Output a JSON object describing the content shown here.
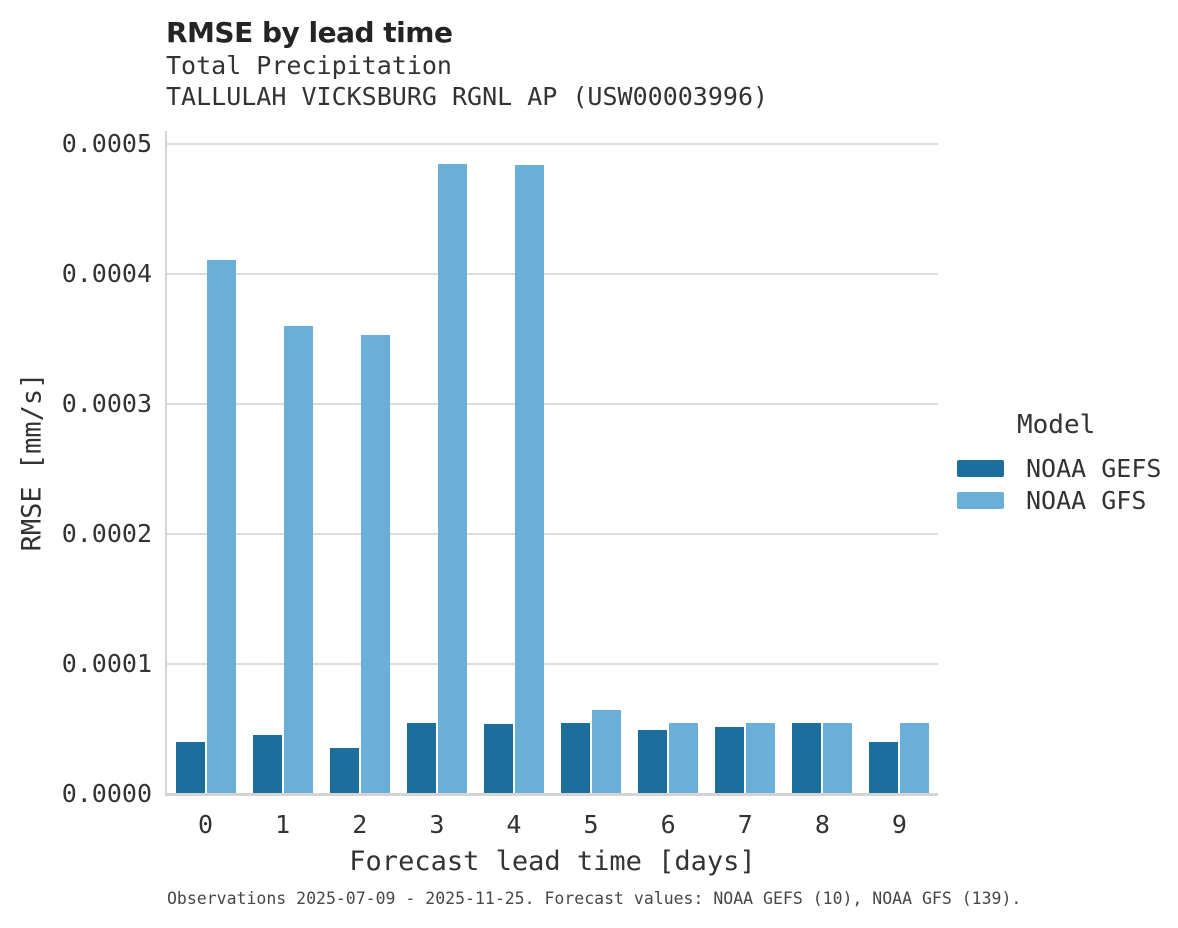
{
  "chart_data": {
    "type": "bar",
    "title": "RMSE by lead time",
    "subtitle_line1": "Total Precipitation",
    "subtitle_line2": "TALLULAH VICKSBURG RGNL AP (USW00003996)",
    "xlabel": "Forecast lead time [days]",
    "ylabel": "RMSE [mm/s]",
    "legend_title": "Model",
    "categories": [
      "0",
      "1",
      "2",
      "3",
      "4",
      "5",
      "6",
      "7",
      "8",
      "9"
    ],
    "series": [
      {
        "name": "NOAA GEFS",
        "color": "#1c6e9d",
        "values": [
          4e-05,
          4.55e-05,
          3.55e-05,
          5.45e-05,
          5.4e-05,
          5.45e-05,
          4.95e-05,
          5.15e-05,
          5.45e-05,
          4e-05
        ]
      },
      {
        "name": "NOAA GFS",
        "color": "#69afd8",
        "values": [
          0.000411,
          0.00036,
          0.000353,
          0.000485,
          0.000484,
          6.5e-05,
          5.45e-05,
          5.45e-05,
          5.45e-05,
          5.45e-05
        ]
      }
    ],
    "ylim": [
      0,
      0.0005
    ],
    "yticks": [
      {
        "value": 0.0,
        "label": "0.0000"
      },
      {
        "value": 0.0001,
        "label": "0.0001"
      },
      {
        "value": 0.0002,
        "label": "0.0002"
      },
      {
        "value": 0.0003,
        "label": "0.0003"
      },
      {
        "value": 0.0004,
        "label": "0.0004"
      },
      {
        "value": 0.0005,
        "label": "0.0005"
      }
    ],
    "grid": "horizontal",
    "legend_position": "right",
    "caption": "Observations 2025-07-09 - 2025-11-25. Forecast values: NOAA GEFS (10), NOAA GFS (139)."
  }
}
